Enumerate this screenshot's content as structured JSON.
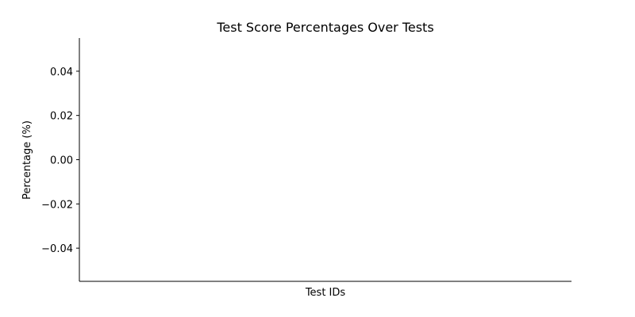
{
  "chart_data": {
    "type": "line",
    "title": "Test Score Percentages Over Tests",
    "xlabel": "Test IDs",
    "ylabel": "Percentage (%)",
    "x": [],
    "series": [],
    "ylim": [
      -0.055,
      0.055
    ],
    "yticks": [
      -0.04,
      -0.02,
      0.0,
      0.02,
      0.04
    ],
    "ytick_labels": [
      "−0.04",
      "−0.02",
      "0.00",
      "0.02",
      "0.04"
    ],
    "xticks": [],
    "grid": false,
    "legend": "none"
  }
}
